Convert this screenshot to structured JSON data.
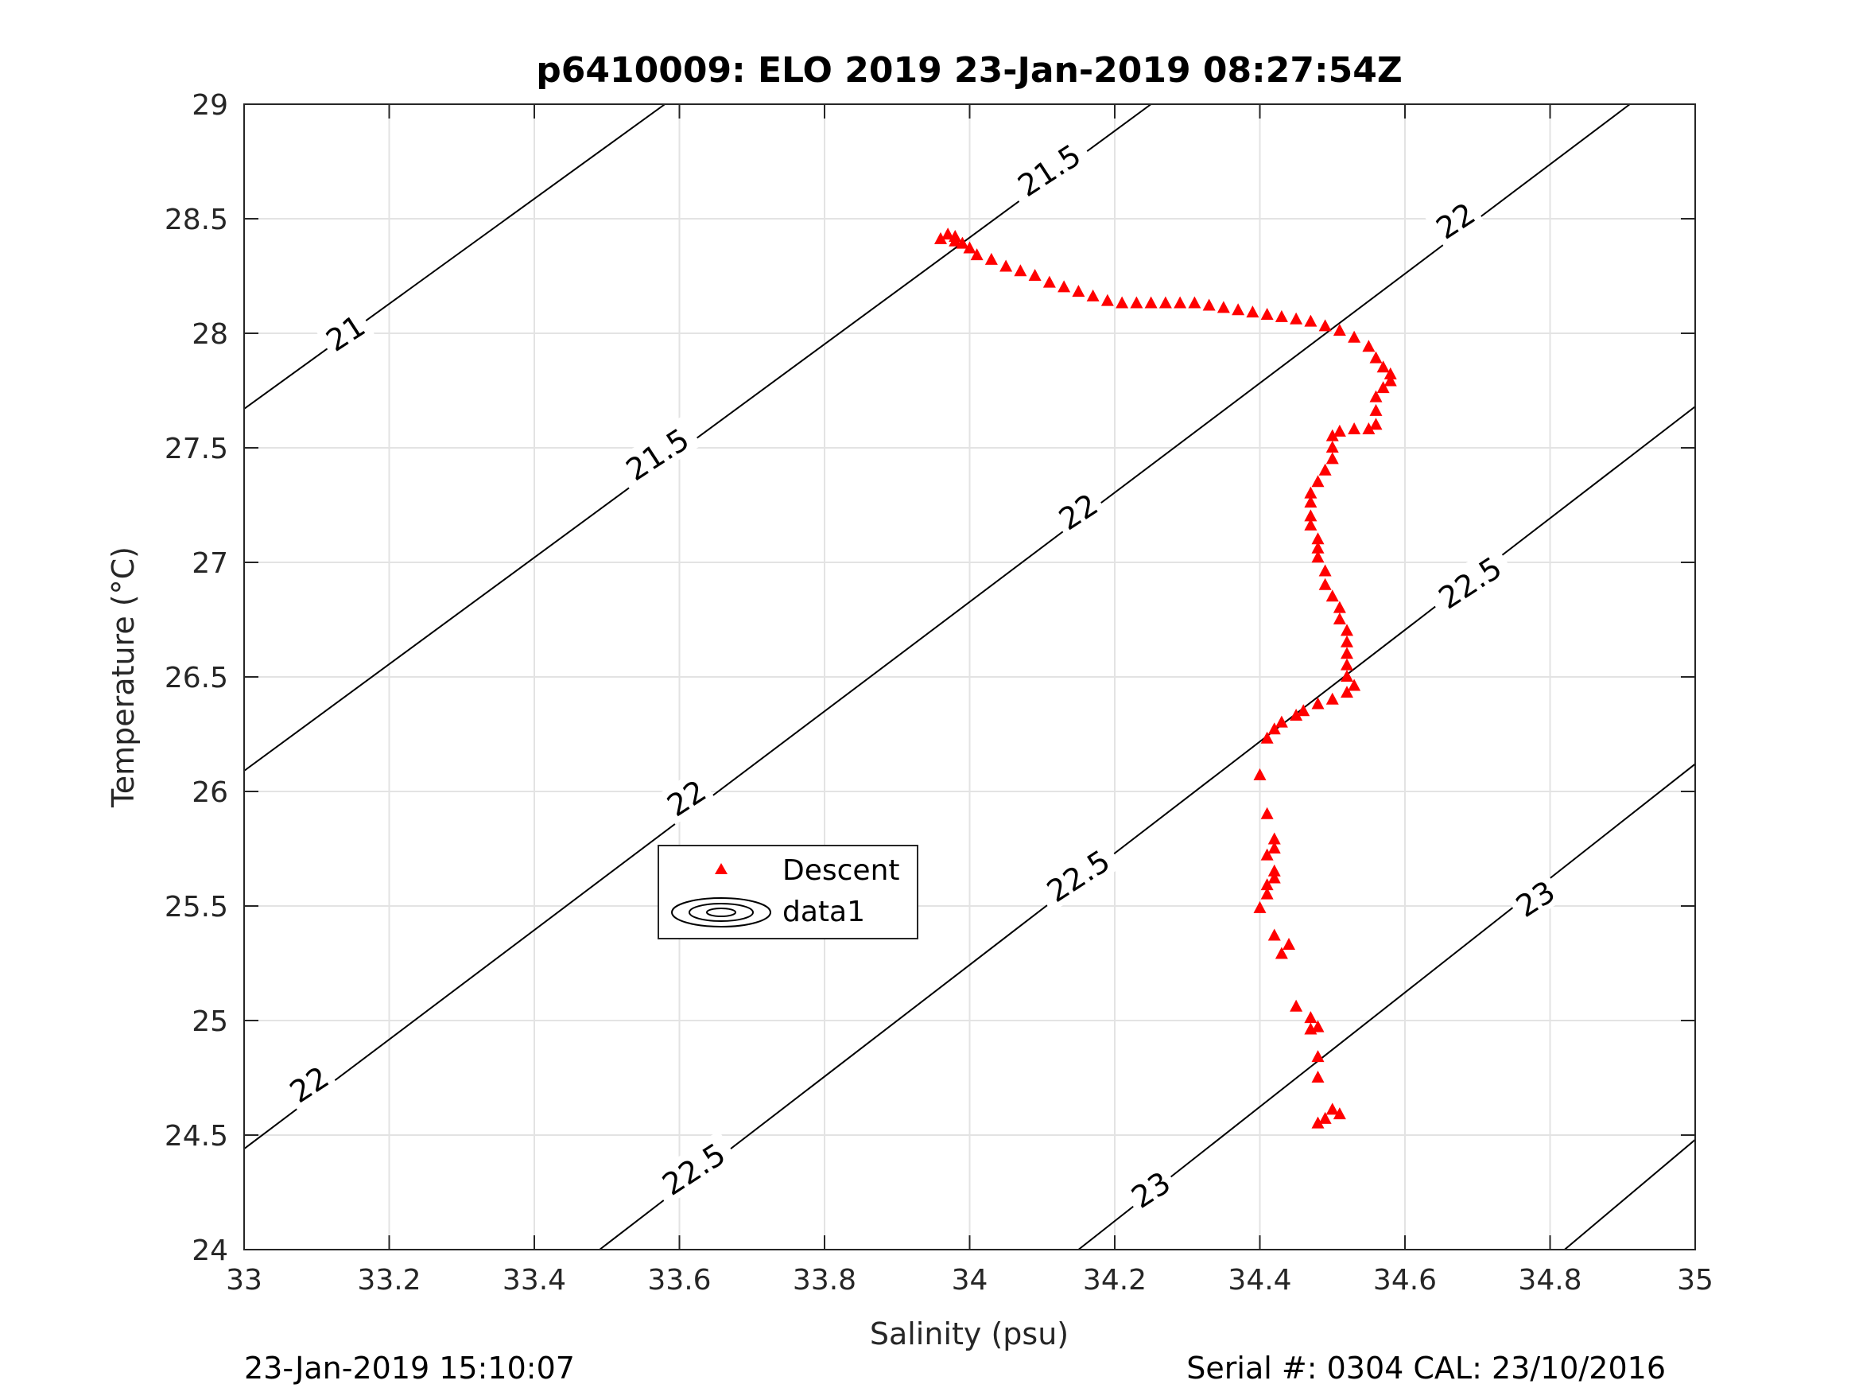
{
  "chart_data": {
    "type": "scatter",
    "title": "p6410009: ELO 2019 23-Jan-2019 08:27:54Z",
    "xlabel": "Salinity (psu)",
    "ylabel": "Temperature (°C)",
    "xlim": [
      33,
      35
    ],
    "ylim": [
      24,
      29
    ],
    "x_ticks": [
      "33",
      "33.2",
      "33.4",
      "33.6",
      "33.8",
      "34",
      "34.2",
      "34.4",
      "34.6",
      "34.8",
      "35"
    ],
    "y_ticks": [
      "24",
      "24.5",
      "25",
      "25.5",
      "26",
      "26.5",
      "27",
      "27.5",
      "28",
      "28.5",
      "29"
    ],
    "grid": true,
    "legend": {
      "position": "center-left",
      "entries": [
        "Descent",
        "data1"
      ]
    },
    "footer_left": "23-Jan-2019 15:10:07",
    "footer_right": "Serial #: 0304  CAL: 23/10/2016",
    "series": [
      {
        "name": "Descent",
        "color": "#ff0000",
        "marker": "triangle",
        "points": [
          [
            33.96,
            28.41
          ],
          [
            33.97,
            28.43
          ],
          [
            33.98,
            28.42
          ],
          [
            33.98,
            28.4
          ],
          [
            33.99,
            28.39
          ],
          [
            34.0,
            28.37
          ],
          [
            34.01,
            28.34
          ],
          [
            34.03,
            28.32
          ],
          [
            34.05,
            28.29
          ],
          [
            34.07,
            28.27
          ],
          [
            34.09,
            28.25
          ],
          [
            34.11,
            28.22
          ],
          [
            34.13,
            28.2
          ],
          [
            34.15,
            28.18
          ],
          [
            34.17,
            28.16
          ],
          [
            34.19,
            28.14
          ],
          [
            34.21,
            28.13
          ],
          [
            34.23,
            28.13
          ],
          [
            34.25,
            28.13
          ],
          [
            34.27,
            28.13
          ],
          [
            34.29,
            28.13
          ],
          [
            34.31,
            28.13
          ],
          [
            34.33,
            28.12
          ],
          [
            34.35,
            28.11
          ],
          [
            34.37,
            28.1
          ],
          [
            34.39,
            28.09
          ],
          [
            34.41,
            28.08
          ],
          [
            34.43,
            28.07
          ],
          [
            34.45,
            28.06
          ],
          [
            34.47,
            28.05
          ],
          [
            34.49,
            28.03
          ],
          [
            34.51,
            28.01
          ],
          [
            34.53,
            27.98
          ],
          [
            34.55,
            27.94
          ],
          [
            34.56,
            27.89
          ],
          [
            34.57,
            27.85
          ],
          [
            34.58,
            27.82
          ],
          [
            34.58,
            27.79
          ],
          [
            34.57,
            27.76
          ],
          [
            34.56,
            27.72
          ],
          [
            34.56,
            27.66
          ],
          [
            34.56,
            27.6
          ],
          [
            34.55,
            27.58
          ],
          [
            34.53,
            27.58
          ],
          [
            34.51,
            27.57
          ],
          [
            34.5,
            27.55
          ],
          [
            34.5,
            27.5
          ],
          [
            34.5,
            27.45
          ],
          [
            34.49,
            27.4
          ],
          [
            34.48,
            27.35
          ],
          [
            34.47,
            27.3
          ],
          [
            34.47,
            27.26
          ],
          [
            34.47,
            27.2
          ],
          [
            34.47,
            27.16
          ],
          [
            34.48,
            27.1
          ],
          [
            34.48,
            27.06
          ],
          [
            34.48,
            27.02
          ],
          [
            34.49,
            26.96
          ],
          [
            34.49,
            26.9
          ],
          [
            34.5,
            26.85
          ],
          [
            34.51,
            26.8
          ],
          [
            34.51,
            26.75
          ],
          [
            34.52,
            26.7
          ],
          [
            34.52,
            26.65
          ],
          [
            34.52,
            26.6
          ],
          [
            34.52,
            26.55
          ],
          [
            34.52,
            26.5
          ],
          [
            34.53,
            26.46
          ],
          [
            34.52,
            26.43
          ],
          [
            34.5,
            26.4
          ],
          [
            34.48,
            26.38
          ],
          [
            34.46,
            26.35
          ],
          [
            34.45,
            26.33
          ],
          [
            34.43,
            26.3
          ],
          [
            34.42,
            26.27
          ],
          [
            34.41,
            26.23
          ],
          [
            34.4,
            26.07
          ],
          [
            34.41,
            25.9
          ],
          [
            34.42,
            25.79
          ],
          [
            34.42,
            25.75
          ],
          [
            34.41,
            25.72
          ],
          [
            34.42,
            25.65
          ],
          [
            34.42,
            25.62
          ],
          [
            34.41,
            25.59
          ],
          [
            34.41,
            25.55
          ],
          [
            34.4,
            25.49
          ],
          [
            34.42,
            25.37
          ],
          [
            34.44,
            25.33
          ],
          [
            34.43,
            25.29
          ],
          [
            34.45,
            25.06
          ],
          [
            34.47,
            25.01
          ],
          [
            34.47,
            24.96
          ],
          [
            34.48,
            24.97
          ],
          [
            34.48,
            24.84
          ],
          [
            34.48,
            24.75
          ],
          [
            34.5,
            24.61
          ],
          [
            34.51,
            24.59
          ],
          [
            34.49,
            24.57
          ],
          [
            34.48,
            24.55
          ]
        ]
      },
      {
        "name": "data1",
        "type": "contour",
        "color": "#000000",
        "lines": [
          {
            "label": "21",
            "points": [
              [
                33.0,
                27.67
              ],
              [
                33.58,
                29.0
              ]
            ]
          },
          {
            "label": "21.5",
            "points": [
              [
                33.0,
                26.09
              ],
              [
                34.25,
                29.0
              ]
            ]
          },
          {
            "label": "22",
            "points": [
              [
                33.0,
                24.44
              ],
              [
                34.91,
                29.0
              ]
            ]
          },
          {
            "label": "22.5",
            "points": [
              [
                33.49,
                24.0
              ],
              [
                35.0,
                27.68
              ]
            ]
          },
          {
            "label": "23",
            "points": [
              [
                34.15,
                24.0
              ],
              [
                35.0,
                26.12
              ]
            ]
          },
          {
            "label": "",
            "points": [
              [
                34.82,
                24.0
              ],
              [
                35.0,
                24.48
              ]
            ]
          }
        ],
        "labels": [
          {
            "text": "21",
            "at": [
              33.14,
              28.0
            ]
          },
          {
            "text": "21.5",
            "at": [
              34.11,
              28.71
            ]
          },
          {
            "text": "21.5",
            "at": [
              33.57,
              27.47
            ]
          },
          {
            "text": "22",
            "at": [
              34.67,
              28.49
            ]
          },
          {
            "text": "22",
            "at": [
              34.15,
              27.22
            ]
          },
          {
            "text": "22",
            "at": [
              33.61,
              25.97
            ]
          },
          {
            "text": "22",
            "at": [
              33.09,
              24.72
            ]
          },
          {
            "text": "22.5",
            "at": [
              34.69,
              26.91
            ]
          },
          {
            "text": "22.5",
            "at": [
              34.15,
              25.63
            ]
          },
          {
            "text": "22.5",
            "at": [
              33.62,
              24.35
            ]
          },
          {
            "text": "23",
            "at": [
              34.78,
              25.53
            ]
          },
          {
            "text": "23",
            "at": [
              34.25,
              24.26
            ]
          }
        ]
      }
    ]
  }
}
